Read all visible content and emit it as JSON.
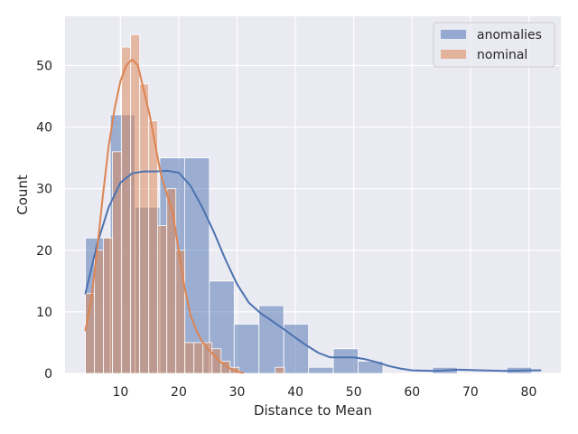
{
  "chart_data": {
    "type": "histogram",
    "xlabel": "Distance to Mean",
    "ylabel": "Count",
    "xlim": [
      0.5,
      85.5
    ],
    "ylim": [
      0,
      58
    ],
    "xticks": [
      10,
      20,
      30,
      40,
      50,
      60,
      70,
      80
    ],
    "yticks": [
      0,
      10,
      20,
      30,
      40,
      50
    ],
    "grid": true,
    "legend_position": "top-right",
    "series": [
      {
        "name": "anomalies",
        "color": "#4c72b0",
        "bins": [
          {
            "x0": 4.0,
            "x1": 8.25,
            "count": 22
          },
          {
            "x0": 8.25,
            "x1": 12.5,
            "count": 42
          },
          {
            "x0": 12.5,
            "x1": 16.75,
            "count": 27
          },
          {
            "x0": 16.75,
            "x1": 21.0,
            "count": 35
          },
          {
            "x0": 21.0,
            "x1": 25.25,
            "count": 35
          },
          {
            "x0": 25.25,
            "x1": 29.5,
            "count": 15
          },
          {
            "x0": 29.5,
            "x1": 33.75,
            "count": 8
          },
          {
            "x0": 33.75,
            "x1": 38.0,
            "count": 11
          },
          {
            "x0": 38.0,
            "x1": 42.25,
            "count": 8
          },
          {
            "x0": 42.25,
            "x1": 46.5,
            "count": 1
          },
          {
            "x0": 46.5,
            "x1": 50.75,
            "count": 4
          },
          {
            "x0": 50.75,
            "x1": 55.0,
            "count": 2
          },
          {
            "x0": 55.0,
            "x1": 59.25,
            "count": 0
          },
          {
            "x0": 59.25,
            "x1": 63.5,
            "count": 0
          },
          {
            "x0": 63.5,
            "x1": 67.75,
            "count": 1
          },
          {
            "x0": 67.75,
            "x1": 72.0,
            "count": 0
          },
          {
            "x0": 72.0,
            "x1": 76.25,
            "count": 0
          },
          {
            "x0": 76.25,
            "x1": 80.5,
            "count": 1
          }
        ],
        "kde": [
          [
            4,
            13
          ],
          [
            6,
            21
          ],
          [
            8,
            27
          ],
          [
            10,
            31
          ],
          [
            12,
            32.5
          ],
          [
            14,
            32.8
          ],
          [
            16,
            32.8
          ],
          [
            18,
            32.9
          ],
          [
            20,
            32.6
          ],
          [
            22,
            30.5
          ],
          [
            24,
            27
          ],
          [
            26,
            23
          ],
          [
            28,
            18.5
          ],
          [
            30,
            14.5
          ],
          [
            32,
            11.5
          ],
          [
            34,
            9.8
          ],
          [
            36,
            8.5
          ],
          [
            38,
            7.2
          ],
          [
            40,
            5.8
          ],
          [
            42,
            4.5
          ],
          [
            44,
            3.3
          ],
          [
            46,
            2.6
          ],
          [
            48,
            2.6
          ],
          [
            50,
            2.6
          ],
          [
            52,
            2.3
          ],
          [
            54,
            1.8
          ],
          [
            56,
            1.2
          ],
          [
            58,
            0.8
          ],
          [
            60,
            0.5
          ],
          [
            64,
            0.4
          ],
          [
            68,
            0.6
          ],
          [
            72,
            0.5
          ],
          [
            76,
            0.4
          ],
          [
            80,
            0.5
          ],
          [
            82,
            0.5
          ]
        ]
      },
      {
        "name": "nominal",
        "color": "#dd8452",
        "bins": [
          {
            "x0": 4.0,
            "x1": 5.55,
            "count": 13
          },
          {
            "x0": 5.55,
            "x1": 7.1,
            "count": 20
          },
          {
            "x0": 7.1,
            "x1": 8.65,
            "count": 22
          },
          {
            "x0": 8.65,
            "x1": 10.2,
            "count": 36
          },
          {
            "x0": 10.2,
            "x1": 11.75,
            "count": 53
          },
          {
            "x0": 11.75,
            "x1": 13.3,
            "count": 55
          },
          {
            "x0": 13.3,
            "x1": 14.85,
            "count": 47
          },
          {
            "x0": 14.85,
            "x1": 16.4,
            "count": 41
          },
          {
            "x0": 16.4,
            "x1": 17.95,
            "count": 24
          },
          {
            "x0": 17.95,
            "x1": 19.5,
            "count": 30
          },
          {
            "x0": 19.5,
            "x1": 21.05,
            "count": 20
          },
          {
            "x0": 21.05,
            "x1": 22.6,
            "count": 5
          },
          {
            "x0": 22.6,
            "x1": 24.15,
            "count": 5
          },
          {
            "x0": 24.15,
            "x1": 25.7,
            "count": 5
          },
          {
            "x0": 25.7,
            "x1": 27.25,
            "count": 4
          },
          {
            "x0": 27.25,
            "x1": 28.8,
            "count": 2
          },
          {
            "x0": 28.8,
            "x1": 30.35,
            "count": 1
          },
          {
            "x0": 30.35,
            "x1": 31.9,
            "count": 0
          },
          {
            "x0": 31.9,
            "x1": 33.45,
            "count": 0
          },
          {
            "x0": 33.45,
            "x1": 35.0,
            "count": 0
          },
          {
            "x0": 35.0,
            "x1": 36.55,
            "count": 0
          },
          {
            "x0": 36.55,
            "x1": 38.1,
            "count": 1
          }
        ],
        "kde": [
          [
            4,
            7
          ],
          [
            5,
            12
          ],
          [
            6,
            20
          ],
          [
            7,
            29
          ],
          [
            8,
            37
          ],
          [
            9,
            43
          ],
          [
            10,
            47.5
          ],
          [
            11,
            50
          ],
          [
            12,
            51
          ],
          [
            13,
            50
          ],
          [
            14,
            46
          ],
          [
            15,
            42
          ],
          [
            16,
            37
          ],
          [
            17,
            32
          ],
          [
            18,
            29
          ],
          [
            19,
            26
          ],
          [
            20,
            20
          ],
          [
            21,
            14
          ],
          [
            22,
            9.5
          ],
          [
            23,
            7
          ],
          [
            24,
            5.2
          ],
          [
            25,
            4
          ],
          [
            26,
            3
          ],
          [
            27,
            2
          ],
          [
            28,
            1.3
          ],
          [
            29,
            0.7
          ],
          [
            30,
            0.3
          ],
          [
            31,
            0.1
          ]
        ]
      }
    ]
  }
}
